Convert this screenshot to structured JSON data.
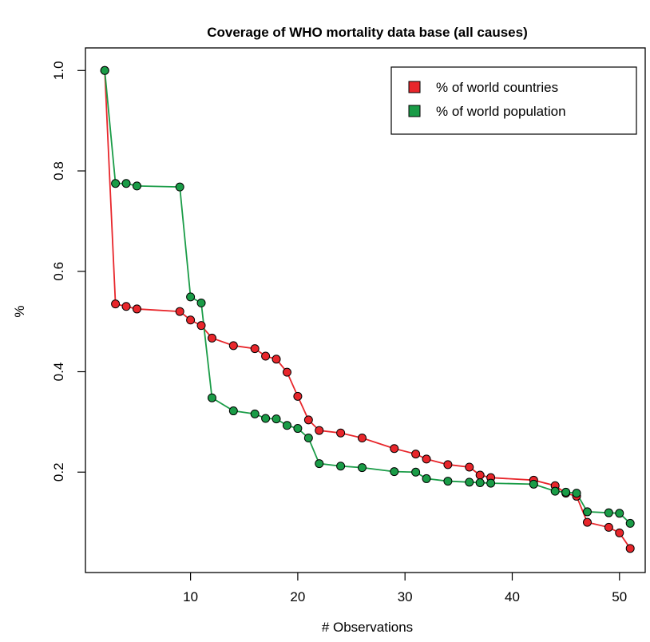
{
  "chart_data": {
    "type": "line",
    "title": "Coverage of WHO mortality data base (all causes)",
    "xlabel": "# Observations",
    "ylabel": "%",
    "xlim": [
      0.2,
      52.4
    ],
    "ylim": [
      0.0,
      1.045
    ],
    "xticks": [
      10,
      20,
      30,
      40,
      50
    ],
    "yticks": [
      0.2,
      0.4,
      0.6,
      0.8,
      1.0
    ],
    "xtick_labels": [
      "10",
      "20",
      "30",
      "40",
      "50"
    ],
    "ytick_labels": [
      "0.2",
      "0.4",
      "0.6",
      "0.8",
      "1.0"
    ],
    "grid": false,
    "legend": {
      "position": "top-right",
      "entries": [
        "% of world countries",
        "% of world population"
      ]
    },
    "series": [
      {
        "name": "% of world countries",
        "color": "#e8262b",
        "x": [
          2,
          3,
          4,
          5,
          9,
          10,
          11,
          12,
          14,
          16,
          17,
          18,
          19,
          20,
          21,
          22,
          24,
          26,
          29,
          31,
          32,
          34,
          36,
          37,
          38,
          42,
          44,
          45,
          46,
          47,
          49,
          50,
          51
        ],
        "y": [
          1.0,
          0.535,
          0.53,
          0.525,
          0.52,
          0.503,
          0.492,
          0.467,
          0.452,
          0.446,
          0.431,
          0.425,
          0.399,
          0.351,
          0.304,
          0.283,
          0.278,
          0.268,
          0.247,
          0.236,
          0.226,
          0.215,
          0.21,
          0.194,
          0.189,
          0.184,
          0.173,
          0.158,
          0.152,
          0.1,
          0.09,
          0.079,
          0.048
        ]
      },
      {
        "name": "% of world population",
        "color": "#1a9c47",
        "x": [
          2,
          3,
          4,
          5,
          9,
          10,
          11,
          12,
          14,
          16,
          17,
          18,
          19,
          20,
          21,
          22,
          24,
          26,
          29,
          31,
          32,
          34,
          36,
          37,
          38,
          42,
          44,
          45,
          46,
          47,
          49,
          50,
          51
        ],
        "y": [
          1.0,
          0.775,
          0.775,
          0.77,
          0.768,
          0.549,
          0.537,
          0.348,
          0.322,
          0.316,
          0.307,
          0.306,
          0.293,
          0.287,
          0.268,
          0.217,
          0.212,
          0.209,
          0.201,
          0.2,
          0.187,
          0.182,
          0.18,
          0.179,
          0.178,
          0.176,
          0.162,
          0.16,
          0.158,
          0.121,
          0.119,
          0.118,
          0.098
        ]
      }
    ]
  }
}
